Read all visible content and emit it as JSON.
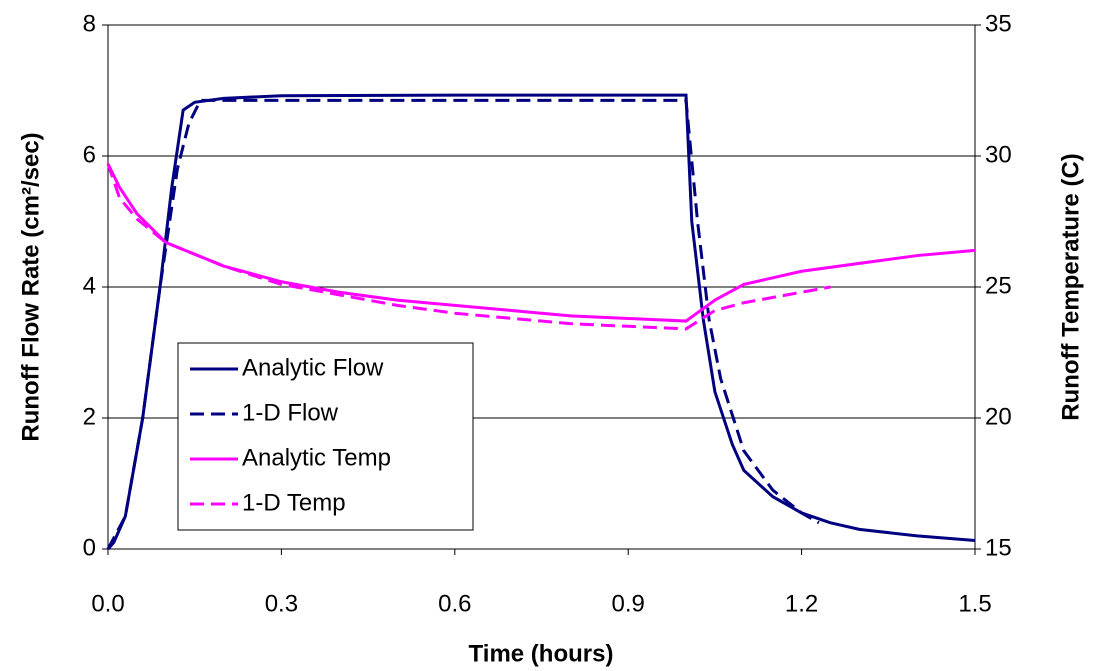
{
  "chart_data": {
    "type": "line",
    "x_label": "Time (hours)",
    "y_label": "Runoff Flow Rate (cm²/sec)",
    "y2_label": "Runoff Temperature (C)",
    "xlim": [
      0,
      1.5
    ],
    "xticks": [
      {
        "value": 0,
        "label": "0.0"
      },
      0.3,
      0.6,
      0.9,
      1.2,
      1.5
    ],
    "ylim": [
      0,
      8
    ],
    "yticks": [
      0,
      2,
      4,
      6,
      8
    ],
    "y2lim": [
      15,
      35
    ],
    "y2ticks": [
      15,
      20,
      25,
      30,
      35
    ],
    "grid": true,
    "legend": "lower left",
    "series": [
      {
        "name": "Analytic Flow",
        "color": "#000080",
        "dashed": false,
        "x": [
          0,
          0.01,
          0.03,
          0.06,
          0.09,
          0.11,
          0.13,
          0.15,
          0.2,
          0.3,
          0.6,
          0.9,
          1.0,
          1.01,
          1.03,
          1.05,
          1.08,
          1.1,
          1.15,
          1.2,
          1.25,
          1.3,
          1.4,
          1.5
        ],
        "values": [
          0,
          0.1,
          0.5,
          2,
          4,
          5.5,
          6.7,
          6.82,
          6.88,
          6.92,
          6.93,
          6.93,
          6.93,
          5,
          3.5,
          2.4,
          1.6,
          1.2,
          0.8,
          0.55,
          0.4,
          0.3,
          0.2,
          0.13
        ]
      },
      {
        "name": "1-D Flow",
        "color": "#000080",
        "dashed": true,
        "x": [
          0,
          0.03,
          0.06,
          0.09,
          0.12,
          0.14,
          0.16,
          0.2,
          0.6,
          1.0,
          1.02,
          1.04,
          1.06,
          1.1,
          1.15,
          1.2,
          1.23
        ],
        "values": [
          0,
          0.5,
          2,
          4,
          5.8,
          6.5,
          6.85,
          6.85,
          6.85,
          6.85,
          5,
          3.5,
          2.6,
          1.5,
          0.9,
          0.55,
          0.4
        ]
      },
      {
        "name": "Analytic Temp",
        "color": "#ff00ff",
        "dashed": false,
        "axis": "y2",
        "x": [
          0,
          0.02,
          0.05,
          0.1,
          0.2,
          0.3,
          0.4,
          0.5,
          0.6,
          0.7,
          0.8,
          0.9,
          1.0,
          1.05,
          1.1,
          1.2,
          1.3,
          1.4,
          1.5
        ],
        "values": [
          29.7,
          28.8,
          27.8,
          26.7,
          25.8,
          25.2,
          24.8,
          24.5,
          24.3,
          24.1,
          23.9,
          23.8,
          23.7,
          24.5,
          25.1,
          25.6,
          25.9,
          26.2,
          26.4
        ]
      },
      {
        "name": "1-D Temp",
        "color": "#ff00ff",
        "dashed": true,
        "axis": "y2",
        "x": [
          0,
          0.02,
          0.05,
          0.1,
          0.2,
          0.3,
          0.4,
          0.5,
          0.6,
          0.7,
          0.8,
          0.9,
          1.0,
          1.05,
          1.1,
          1.2,
          1.25
        ],
        "values": [
          29.7,
          28.4,
          27.6,
          26.7,
          25.8,
          25.1,
          24.7,
          24.3,
          24.0,
          23.8,
          23.6,
          23.5,
          23.4,
          24.1,
          24.4,
          24.8,
          25.0
        ]
      }
    ]
  }
}
